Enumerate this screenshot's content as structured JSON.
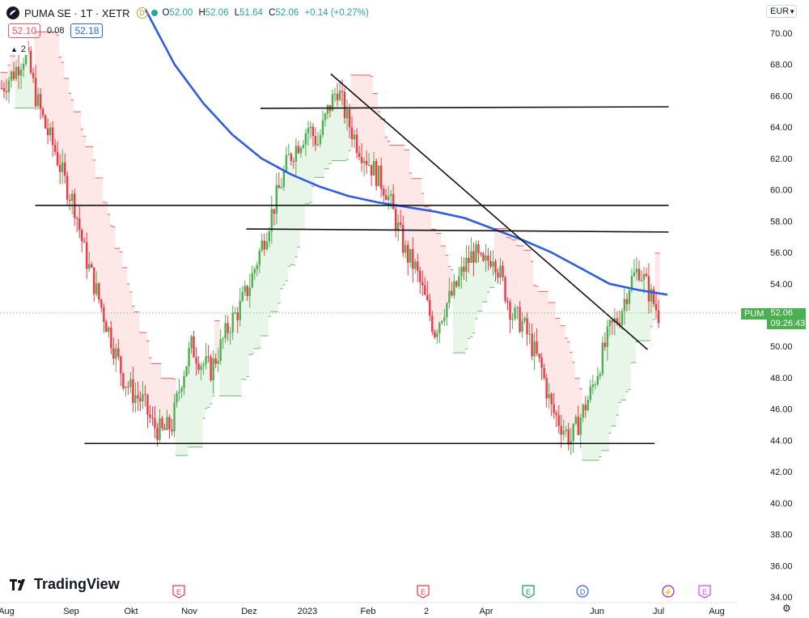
{
  "header": {
    "symbol": "PUMA SE · 1T · XETR",
    "badge": "D",
    "o_label": "O",
    "o_value": "52.00",
    "h_label": "H",
    "h_value": "52.06",
    "l_label": "L",
    "l_value": "51.64",
    "c_label": "C",
    "c_value": "52.06",
    "change": "+0.14 (+0.27%)"
  },
  "quote": {
    "bid": "52.10",
    "spread": "0.08",
    "ask": "52.18"
  },
  "indicator_toggle": {
    "count": "2"
  },
  "currency": "EUR",
  "last_price": {
    "symbol": "PUM",
    "price": "52.06",
    "countdown": "09:26:43"
  },
  "brand": "TradingView",
  "colors": {
    "up": "#4caf50",
    "down": "#f23645",
    "ma": "#2e5de0",
    "ribbon_up": "#e8f5e9",
    "ribbon_down": "#fde7e7",
    "line": "#111111"
  },
  "chart_data": {
    "type": "candlestick",
    "y_ticks": [
      "34.00",
      "36.00",
      "38.00",
      "40.00",
      "42.00",
      "44.00",
      "46.00",
      "48.00",
      "50.00",
      "52.00",
      "54.00",
      "56.00",
      "58.00",
      "60.00",
      "62.00",
      "64.00",
      "66.00",
      "68.00",
      "70.00"
    ],
    "ylim": [
      34,
      71
    ],
    "x_ticks": [
      "Aug",
      "Sep",
      "Okt",
      "Nov",
      "Dez",
      "2023",
      "Feb",
      "2",
      "Apr",
      "Jun",
      "Jul",
      "Aug"
    ],
    "events": [
      {
        "label": "E",
        "kind": "earnings"
      },
      {
        "label": "E",
        "kind": "earnings"
      },
      {
        "label": "E",
        "kind": "earnings"
      },
      {
        "label": "D",
        "kind": "dividend"
      },
      {
        "label": "⚡",
        "kind": "split"
      },
      {
        "label": "E",
        "kind": "earnings"
      }
    ],
    "close_path": [
      [
        0,
        66.5
      ],
      [
        5,
        67.5
      ],
      [
        10,
        68.8
      ],
      [
        14,
        66
      ],
      [
        18,
        64
      ],
      [
        22,
        62.5
      ],
      [
        26,
        60.5
      ],
      [
        30,
        59
      ],
      [
        34,
        56
      ],
      [
        38,
        54
      ],
      [
        42,
        52
      ],
      [
        46,
        50
      ],
      [
        50,
        48
      ],
      [
        54,
        47
      ],
      [
        58,
        46.5
      ],
      [
        62,
        45
      ],
      [
        66,
        44.5
      ],
      [
        70,
        45
      ],
      [
        74,
        48
      ],
      [
        78,
        50
      ],
      [
        82,
        49
      ],
      [
        86,
        48.5
      ],
      [
        90,
        50
      ],
      [
        94,
        51.5
      ],
      [
        98,
        52.5
      ],
      [
        102,
        54
      ],
      [
        106,
        56
      ],
      [
        110,
        58
      ],
      [
        114,
        60
      ],
      [
        118,
        62
      ],
      [
        122,
        63
      ],
      [
        126,
        64
      ],
      [
        130,
        63
      ],
      [
        134,
        65
      ],
      [
        138,
        66.5
      ],
      [
        142,
        64.5
      ],
      [
        146,
        63
      ],
      [
        150,
        62
      ],
      [
        154,
        61
      ],
      [
        158,
        60
      ],
      [
        162,
        58
      ],
      [
        166,
        56
      ],
      [
        170,
        55
      ],
      [
        174,
        53
      ],
      [
        178,
        51
      ],
      [
        182,
        52.5
      ],
      [
        186,
        53.5
      ],
      [
        190,
        55
      ],
      [
        194,
        56
      ],
      [
        198,
        55
      ],
      [
        202,
        56
      ],
      [
        206,
        54
      ],
      [
        210,
        52
      ],
      [
        214,
        51.5
      ],
      [
        218,
        50
      ],
      [
        222,
        48.5
      ],
      [
        226,
        46
      ],
      [
        230,
        45
      ],
      [
        234,
        44
      ],
      [
        238,
        45.5
      ],
      [
        242,
        47
      ],
      [
        246,
        49
      ],
      [
        250,
        51
      ],
      [
        254,
        52
      ],
      [
        258,
        54
      ],
      [
        262,
        55
      ],
      [
        266,
        53.5
      ],
      [
        270,
        52.06
      ]
    ],
    "ma_path": [
      [
        40,
        71.5
      ],
      [
        50,
        68
      ],
      [
        60,
        65.5
      ],
      [
        70,
        63.5
      ],
      [
        80,
        62
      ],
      [
        90,
        61
      ],
      [
        100,
        60.2
      ],
      [
        110,
        59.6
      ],
      [
        120,
        59.2
      ],
      [
        130,
        58.9
      ],
      [
        140,
        58.6
      ],
      [
        150,
        58.2
      ],
      [
        160,
        57.5
      ],
      [
        170,
        56.8
      ],
      [
        180,
        56
      ],
      [
        190,
        55
      ],
      [
        200,
        54
      ],
      [
        210,
        53.6
      ],
      [
        220,
        53.3
      ]
    ],
    "trendlines": [
      {
        "x1": 0.05,
        "y1": 59.0,
        "x2": 0.95,
        "y2": 59.0
      },
      {
        "x1": 0.35,
        "y1": 57.5,
        "x2": 0.95,
        "y2": 57.3
      },
      {
        "x1": 0.37,
        "y1": 65.2,
        "x2": 0.95,
        "y2": 65.3
      },
      {
        "x1": 0.12,
        "y1": 43.8,
        "x2": 0.93,
        "y2": 43.8
      },
      {
        "x1": 0.47,
        "y1": 67.4,
        "x2": 0.92,
        "y2": 49.8
      }
    ]
  }
}
